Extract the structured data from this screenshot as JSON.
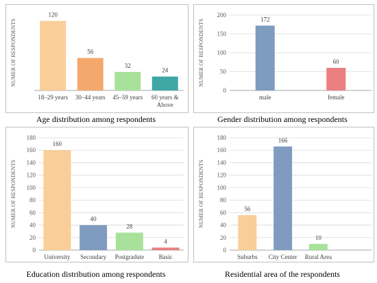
{
  "chart_data": [
    {
      "type": "bar",
      "title": "Age distribution among respondents",
      "ylabel": "NUMER OF RESPONDENTS",
      "categories": [
        [
          "18–29 years"
        ],
        [
          "30–44 years"
        ],
        [
          "45–59 years"
        ],
        [
          "60 years &",
          "Above"
        ]
      ],
      "values": [
        120,
        56,
        32,
        24
      ],
      "colors": [
        "#F9CE98",
        "#F5A86B",
        "#A8E29A",
        "#3FA6A6"
      ],
      "ylim": [
        0,
        130
      ],
      "yticks": [],
      "grid": false
    },
    {
      "type": "bar",
      "title": "Gender distribution among respondents",
      "ylabel": "NUMER OF RESPONDENTS",
      "categories": [
        [
          "male"
        ],
        [
          "female"
        ]
      ],
      "values": [
        172,
        60
      ],
      "colors": [
        "#7F9CC0",
        "#EA7F7F"
      ],
      "ylim": [
        0,
        200
      ],
      "yticks": [
        0,
        50,
        100,
        150,
        200
      ],
      "grid": true
    },
    {
      "type": "bar",
      "title": "Education distribution among respondents",
      "ylabel": "NUMER OF RESPONDENTS",
      "categories": [
        [
          "University"
        ],
        [
          "Secondary"
        ],
        [
          "Postgradute"
        ],
        [
          "Basic"
        ]
      ],
      "values": [
        160,
        40,
        28,
        4
      ],
      "colors": [
        "#F9CE98",
        "#7F9CC0",
        "#A8E29A",
        "#EA7F7F"
      ],
      "ylim": [
        0,
        180
      ],
      "yticks": [
        0,
        20,
        40,
        60,
        80,
        100,
        120,
        140,
        160,
        180
      ],
      "grid": true
    },
    {
      "type": "bar",
      "title": "Residential area of the respondents",
      "ylabel": "NUMER OF RESPONDENTS",
      "categories": [
        [
          "Suburbs"
        ],
        [
          "City Center"
        ],
        [
          "Rural Area"
        ],
        [
          ""
        ]
      ],
      "values": [
        56,
        166,
        10,
        0
      ],
      "value_labels": [
        "56",
        "166",
        "10",
        ""
      ],
      "colors": [
        "#F9CE98",
        "#7F9CC0",
        "#A8E29A",
        "#EA7F7F"
      ],
      "ylim": [
        0,
        180
      ],
      "yticks": [
        0,
        20,
        40,
        60,
        80,
        100,
        120,
        140,
        160,
        180
      ],
      "grid": true
    }
  ]
}
